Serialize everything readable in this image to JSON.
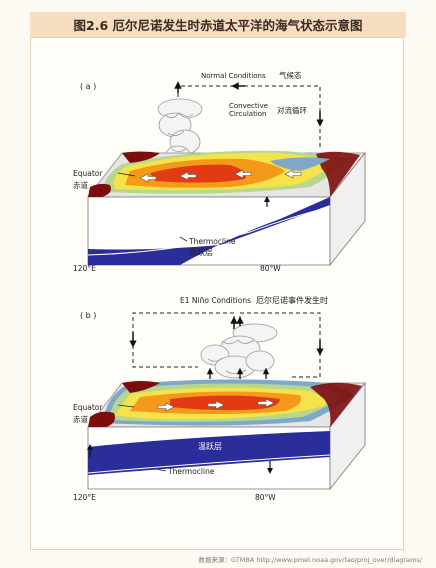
{
  "title": "图2.6 厄尔尼诺发生时赤道太平洋的海气状态示意图",
  "panel_a": {
    "tag": "( a )",
    "conditions_en": "Normal Conditions",
    "conditions_zh": "气候态",
    "convective_en_1": "Convective",
    "convective_en_2": "Circulation",
    "convective_zh": "对流循环",
    "equator_en": "Equator",
    "equator_zh": "赤道",
    "thermocline_en": "Thermocline",
    "thermocline_zh": "温跃层",
    "lon_west": "120°E",
    "lon_east": "80°W"
  },
  "panel_b": {
    "tag": "( b )",
    "conditions_en": "E1 Niño Conditions",
    "conditions_zh": "厄尔尼诺事件发生时",
    "equator_en": "Equator",
    "equator_zh": "赤道",
    "thermocline_zh": "温跃层",
    "thermocline_en": "Thermocline",
    "lon_west": "120°E",
    "lon_east": "80°W"
  },
  "source": "数据来源：GTMBA http://www.pmel.noaa.gov/tao/proj_over/diagrams/",
  "colors": {
    "warm_core": "#e23b13",
    "warm_orange": "#f39a1a",
    "warm_yellow": "#f6e24a",
    "cool_green": "#b6d88d",
    "cool_blue": "#7ea7c8",
    "land": "#7c0d0d",
    "thermocline_deep": "#2a2d9a",
    "title_bg": "#f6dcc0"
  }
}
